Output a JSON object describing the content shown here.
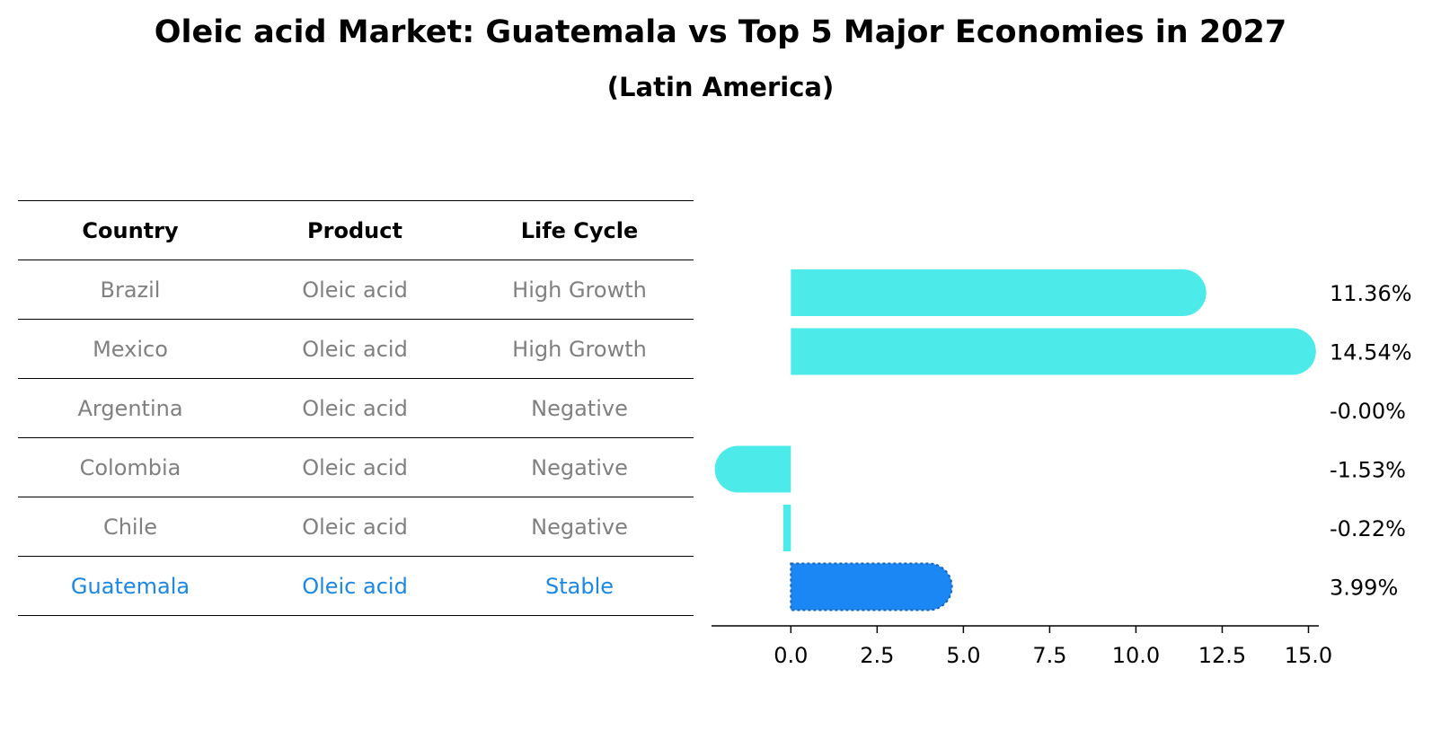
{
  "title": "Oleic acid Market: Guatemala vs Top 5 Major Economies in 2027",
  "subtitle": "(Latin America)",
  "table": {
    "headers": [
      "Country",
      "Product",
      "Life Cycle"
    ],
    "rows": [
      {
        "country": "Brazil",
        "product": "Oleic acid",
        "life_cycle": "High Growth"
      },
      {
        "country": "Mexico",
        "product": "Oleic acid",
        "life_cycle": "High Growth"
      },
      {
        "country": "Argentina",
        "product": "Oleic acid",
        "life_cycle": "Negative"
      },
      {
        "country": "Colombia",
        "product": "Oleic acid",
        "life_cycle": "Negative"
      },
      {
        "country": "Chile",
        "product": "Oleic acid",
        "life_cycle": "Negative"
      },
      {
        "country": "Guatemala",
        "product": "Oleic acid",
        "life_cycle": "Stable"
      }
    ],
    "highlight_row": "Guatemala"
  },
  "chart_data": {
    "type": "bar",
    "orientation": "horizontal",
    "categories": [
      "Brazil",
      "Mexico",
      "Argentina",
      "Colombia",
      "Chile",
      "Guatemala"
    ],
    "values": [
      11.36,
      14.54,
      -0.0,
      -1.53,
      -0.22,
      3.99
    ],
    "value_labels": [
      "11.36%",
      "14.54%",
      "-0.00%",
      "-1.53%",
      "-0.22%",
      "3.99%"
    ],
    "xlim": [
      -2.3,
      15.3
    ],
    "xticks": [
      0.0,
      2.5,
      5.0,
      7.5,
      10.0,
      12.5,
      15.0
    ],
    "xtick_labels": [
      "0.0",
      "2.5",
      "5.0",
      "7.5",
      "10.0",
      "12.5",
      "15.0"
    ],
    "grid": false,
    "colors": {
      "default": "#4deaea",
      "highlight": "#1b87f5"
    },
    "highlight": "Guatemala"
  }
}
